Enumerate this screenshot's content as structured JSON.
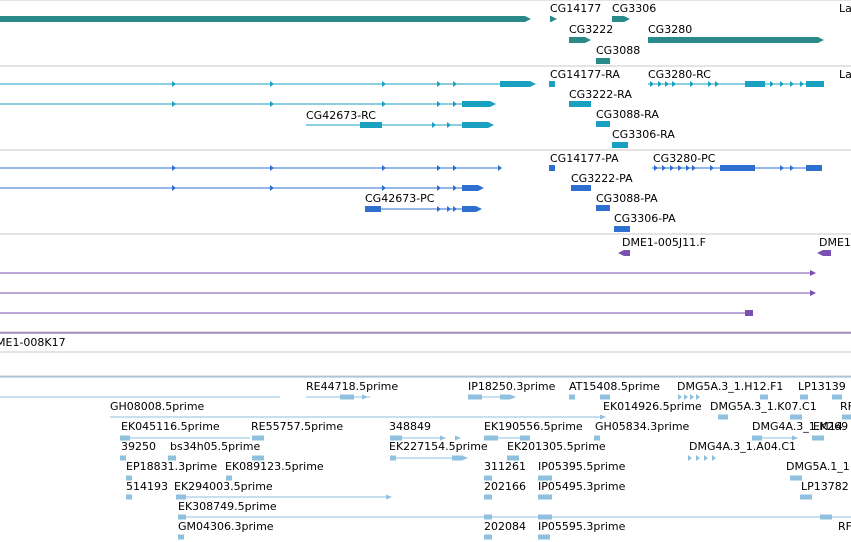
{
  "colors": {
    "gene": "#2a8a8a",
    "mrna_ra": "#1aa0c0",
    "protein": "#2f6fd0",
    "clone": "#7a50b0",
    "est": "#8fc0e0",
    "divider": "#c8c8c8"
  },
  "tracks": {
    "genes": {
      "labels": [
        "CG14177",
        "CG3306",
        "La",
        "CG3222",
        "CG3280",
        "CG3088"
      ]
    },
    "transcripts": {
      "labels": [
        "CG14177-RA",
        "CG3280-RC",
        "La",
        "CG3222-RA",
        "CG42673-RC",
        "CG3088-RA",
        "CG3306-RA"
      ]
    },
    "proteins": {
      "labels": [
        "CG14177-PA",
        "CG3280-PC",
        "CG3222-PA",
        "CG42673-PC",
        "CG3088-PA",
        "CG3306-PA"
      ]
    },
    "clones": {
      "labels": [
        "DME1-005J11.F",
        "DME1",
        "ME1-008K17"
      ]
    },
    "ests": {
      "labels": [
        "RE44718.5prime",
        "IP18250.3prime",
        "AT15408.5prime",
        "DMG5A.3_1.H12.F1",
        "LP13139",
        "GH08008.5prime",
        "EK014926.5prime",
        "DMG5A.3_1.K07.C1",
        "RF",
        "EK045116.5prime",
        "RE55757.5prime",
        "348849",
        "EK190556.5prime",
        "GH05834.3prime",
        "DMG4A.3_1.M14",
        "EK269",
        "39250",
        "bs34h05.5prime",
        "EK227154.5prime",
        "EK201305.5prime",
        "DMG4A.3_1.A04.C1",
        "EP18831.3prime",
        "EK089123.5prime",
        "311261",
        "IP05395.5prime",
        "DMG5A.1_1",
        "514193",
        "EK294003.5prime",
        "202166",
        "IP05495.3prime",
        "LP13782",
        "EK308749.5prime",
        "GM04306.3prime",
        "202084",
        "IP05595.3prime",
        "RF"
      ]
    }
  }
}
